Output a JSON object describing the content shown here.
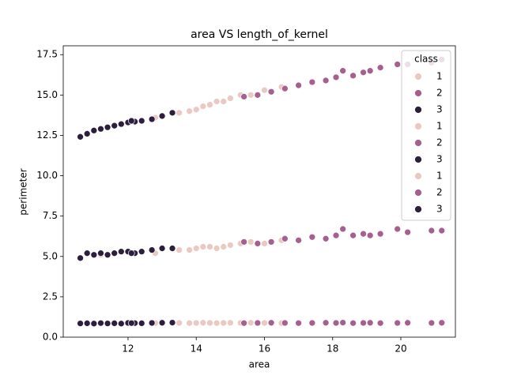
{
  "chart_data": {
    "type": "scatter",
    "title": "area VS length_of_kernel",
    "x_label": "area",
    "y_label": "perimeter",
    "xlim": [
      10.1,
      21.6
    ],
    "ylim": [
      0,
      18.05
    ],
    "xticks": [
      12,
      14,
      16,
      18,
      20
    ],
    "yticks": [
      {
        "value": 0,
        "label": "0.0"
      },
      2.5,
      {
        "value": 5,
        "label": "5.0"
      },
      7.5,
      {
        "value": 10,
        "label": "10.0"
      },
      12.5,
      {
        "value": 15,
        "label": "15.0"
      },
      17.5
    ],
    "grid": false,
    "legend_title": "class",
    "legend": "upper right",
    "series": [
      {
        "name": "1",
        "color": "#ebc9c2",
        "x": [
          11.2,
          12.8,
          13.5,
          13.8,
          14.0,
          14.2,
          14.4,
          14.6,
          14.8,
          15.0,
          15.3,
          15.6,
          16.0,
          16.5
        ],
        "y": [
          12.9,
          13.6,
          13.9,
          14.0,
          14.1,
          14.3,
          14.4,
          14.6,
          14.6,
          14.8,
          15.0,
          15.0,
          15.3,
          15.5
        ]
      },
      {
        "name": "2",
        "color": "#a6608f",
        "x": [
          15.4,
          15.8,
          16.2,
          16.6,
          17.0,
          17.4,
          17.8,
          18.1,
          18.3,
          18.6,
          18.9,
          19.1,
          19.4,
          19.9,
          20.2,
          20.9,
          21.2
        ],
        "y": [
          14.9,
          15.0,
          15.2,
          15.4,
          15.6,
          15.8,
          15.9,
          16.1,
          16.5,
          16.2,
          16.4,
          16.5,
          16.7,
          16.9,
          16.9,
          17.0,
          17.2
        ]
      },
      {
        "name": "3",
        "color": "#2d1e3e",
        "x": [
          10.6,
          10.8,
          11.0,
          11.2,
          11.4,
          11.6,
          11.8,
          12.0,
          12.2,
          12.4,
          12.7,
          13.0,
          13.3,
          12.1
        ],
        "y": [
          12.41,
          12.6,
          12.8,
          12.9,
          13.0,
          13.1,
          13.2,
          13.3,
          13.35,
          13.4,
          13.5,
          13.7,
          13.9,
          13.4
        ]
      },
      {
        "name": "1",
        "color": "#ebc9c2",
        "x": [
          11.2,
          12.8,
          13.5,
          13.8,
          14.0,
          14.2,
          14.4,
          14.6,
          14.8,
          15.0,
          15.3,
          15.6,
          16.0,
          16.5
        ],
        "y": [
          5.1,
          5.2,
          5.4,
          5.4,
          5.5,
          5.6,
          5.6,
          5.5,
          5.6,
          5.7,
          5.8,
          5.9,
          5.8,
          6.0
        ]
      },
      {
        "name": "2",
        "color": "#a6608f",
        "x": [
          15.4,
          15.8,
          16.2,
          16.6,
          17.0,
          17.4,
          17.8,
          18.1,
          18.3,
          18.6,
          18.9,
          19.1,
          19.4,
          19.9,
          20.2,
          20.9,
          21.2
        ],
        "y": [
          5.9,
          5.8,
          5.9,
          6.1,
          6.0,
          6.2,
          6.1,
          6.3,
          6.7,
          6.3,
          6.4,
          6.3,
          6.4,
          6.7,
          6.5,
          6.6,
          6.6
        ]
      },
      {
        "name": "3",
        "color": "#2d1e3e",
        "x": [
          10.6,
          10.8,
          11.0,
          11.2,
          11.4,
          11.6,
          11.8,
          12.0,
          12.2,
          12.4,
          12.7,
          13.0,
          13.3,
          12.1
        ],
        "y": [
          4.9,
          5.2,
          5.1,
          5.2,
          5.1,
          5.2,
          5.3,
          5.3,
          5.2,
          5.3,
          5.4,
          5.5,
          5.5,
          5.2
        ]
      },
      {
        "name": "1",
        "color": "#ebc9c2",
        "x": [
          11.2,
          12.8,
          13.5,
          13.8,
          14.0,
          14.2,
          14.4,
          14.6,
          14.8,
          15.0,
          15.3,
          15.6,
          16.0,
          16.5
        ],
        "y": [
          0.88,
          0.87,
          0.88,
          0.87,
          0.88,
          0.89,
          0.88,
          0.87,
          0.88,
          0.89,
          0.88,
          0.89,
          0.88,
          0.87
        ]
      },
      {
        "name": "2",
        "color": "#a6608f",
        "x": [
          15.4,
          15.8,
          16.2,
          16.6,
          17.0,
          17.4,
          17.8,
          18.1,
          18.3,
          18.6,
          18.9,
          19.1,
          19.4,
          19.9,
          20.2,
          20.9,
          21.2
        ],
        "y": [
          0.87,
          0.88,
          0.89,
          0.88,
          0.87,
          0.88,
          0.89,
          0.88,
          0.9,
          0.87,
          0.88,
          0.89,
          0.87,
          0.88,
          0.89,
          0.88,
          0.89
        ]
      },
      {
        "name": "3",
        "color": "#2d1e3e",
        "x": [
          10.6,
          10.8,
          11.0,
          11.2,
          11.4,
          11.6,
          11.8,
          12.0,
          12.2,
          12.4,
          12.7,
          13.0,
          13.3,
          12.1
        ],
        "y": [
          0.85,
          0.86,
          0.84,
          0.87,
          0.85,
          0.86,
          0.84,
          0.88,
          0.87,
          0.86,
          0.88,
          0.89,
          0.9,
          0.87
        ]
      }
    ]
  }
}
